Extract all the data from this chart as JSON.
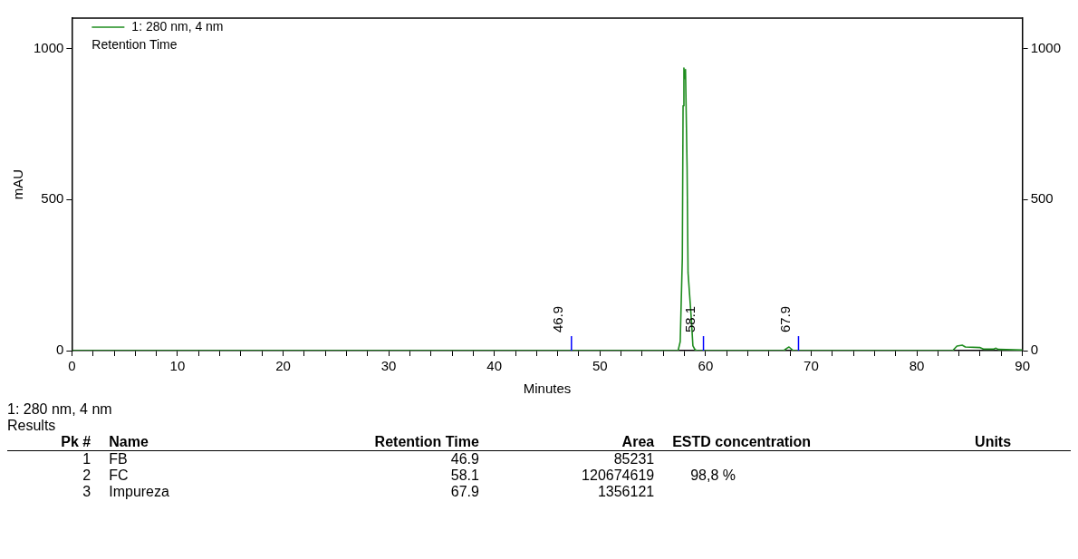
{
  "chart_data": [
    {
      "type": "line",
      "xlabel": "Minutes",
      "ylabel": "mAU",
      "legend": "top left",
      "legend_title": "Retention Time",
      "marker": "none",
      "line_style": "solid",
      "grid": false,
      "xlim": [
        0,
        90
      ],
      "xticks": [
        0,
        {
          "value": 2,
          "label": null
        },
        {
          "value": 4,
          "label": null
        },
        {
          "value": 6,
          "label": null
        },
        {
          "value": 8,
          "label": null
        },
        10,
        {
          "value": 12,
          "label": null
        },
        {
          "value": 14,
          "label": null
        },
        {
          "value": 16,
          "label": null
        },
        {
          "value": 18,
          "label": null
        },
        20,
        {
          "value": 22,
          "label": null
        },
        {
          "value": 24,
          "label": null
        },
        {
          "value": 26,
          "label": null
        },
        {
          "value": 28,
          "label": null
        },
        30,
        {
          "value": 32,
          "label": null
        },
        {
          "value": 34,
          "label": null
        },
        {
          "value": 36,
          "label": null
        },
        {
          "value": 38,
          "label": null
        },
        40,
        {
          "value": 42,
          "label": null
        },
        {
          "value": 44,
          "label": null
        },
        {
          "value": 46,
          "label": null
        },
        {
          "value": 48,
          "label": null
        },
        50,
        {
          "value": 52,
          "label": null
        },
        {
          "value": 54,
          "label": null
        },
        {
          "value": 56,
          "label": null
        },
        {
          "value": 58,
          "label": null
        },
        60,
        {
          "value": 62,
          "label": null
        },
        {
          "value": 64,
          "label": null
        },
        {
          "value": 66,
          "label": null
        },
        {
          "value": 68,
          "label": null
        },
        70,
        {
          "value": 72,
          "label": null
        },
        {
          "value": 74,
          "label": null
        },
        {
          "value": 76,
          "label": null
        },
        {
          "value": 78,
          "label": null
        },
        80,
        {
          "value": 82,
          "label": null
        },
        {
          "value": 84,
          "label": null
        },
        {
          "value": 86,
          "label": null
        },
        {
          "value": 88,
          "label": null
        },
        90
      ],
      "ylim": [
        0,
        1100
      ],
      "yticks": [
        0,
        500,
        1000
      ],
      "y2lim": [
        0,
        1100
      ],
      "y2ticks": [
        0,
        500,
        1000
      ],
      "series": [
        {
          "name": "1: 280 nm, 4 nm",
          "color": "#1e8c1e",
          "x": [
            0,
            57.4,
            57.6,
            57.8,
            57.87,
            57.95,
            58.0,
            58.1,
            58.25,
            58.34,
            58.66,
            58.8,
            59.0,
            59.2,
            67.4,
            67.7,
            67.9,
            68.1,
            68.3,
            83.4,
            83.8,
            84.3,
            84.6,
            86.0,
            86.3,
            87.3,
            87.5,
            87.7,
            90
          ],
          "values": [
            0,
            0,
            30,
            306,
            810,
            935,
            900,
            930,
            606,
            258,
            100,
            16,
            3,
            0,
            0,
            8,
            12,
            6,
            0,
            0,
            15,
            18,
            12,
            10,
            5,
            5,
            8,
            4,
            2
          ]
        }
      ],
      "annotations": [
        {
          "text": "46.9",
          "x": 47.3,
          "y": 0
        },
        {
          "text": "58.1",
          "x": 59.8,
          "y": 0
        },
        {
          "text": "67.9",
          "x": 68.8,
          "y": 0
        }
      ]
    },
    {
      "type": "other",
      "title": "1: 280 nm, 4 nm Results",
      "categories": [
        "Pk #",
        "Name",
        "Retention Time",
        "Area",
        "ESTD concentration",
        "Units"
      ],
      "cell_labels": [
        [
          "1",
          "FB",
          "46.9",
          "85231",
          null,
          null
        ],
        [
          "2",
          "FC",
          "58.1",
          "120674619",
          "98,8 %",
          null
        ],
        [
          "3",
          "Impureza",
          "67.9",
          "1356121",
          null,
          null
        ]
      ]
    }
  ]
}
